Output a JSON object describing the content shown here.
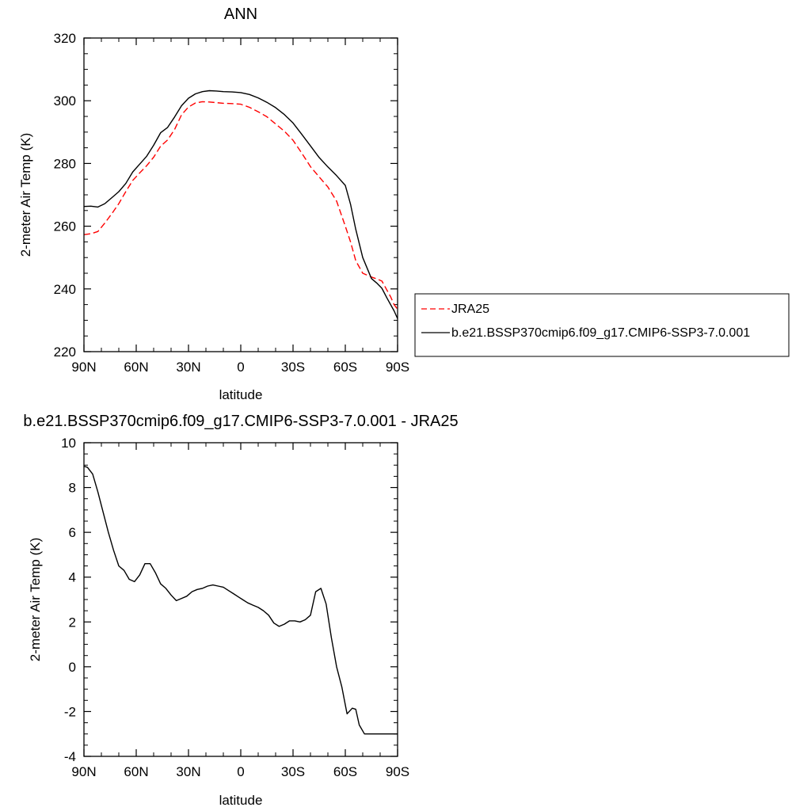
{
  "chart_data": [
    {
      "type": "line",
      "title": "ANN",
      "xlabel": "latitude",
      "ylabel": "2-meter Air Temp (K)",
      "xlim": [
        90,
        -90
      ],
      "ylim": [
        220,
        320
      ],
      "x_ticks": [
        90,
        60,
        30,
        0,
        -30,
        -60,
        -90
      ],
      "x_tick_labels": [
        "90N",
        "60N",
        "30N",
        "0",
        "30S",
        "60S",
        "90S"
      ],
      "y_ticks": [
        220,
        240,
        260,
        280,
        300,
        320
      ],
      "y_tick_labels": [
        "220",
        "240",
        "260",
        "280",
        "300",
        "320"
      ],
      "legend_position": "right",
      "series": [
        {
          "name": "JRA25",
          "color": "#ff0000",
          "style": "dashed",
          "x": [
            90,
            86,
            82,
            78,
            74,
            70,
            66,
            62,
            58,
            54,
            50,
            46,
            42,
            38,
            34,
            30,
            26,
            22,
            18,
            14,
            10,
            5,
            0,
            -5,
            -10,
            -15,
            -20,
            -25,
            -30,
            -35,
            -40,
            -45,
            -50,
            -55,
            -60,
            -63,
            -66,
            -70,
            -75,
            -78,
            -81,
            -84,
            -86,
            -88,
            -90
          ],
          "y": [
            257.3,
            257.6,
            258.3,
            261.0,
            264.0,
            267.2,
            271.0,
            274.6,
            277.0,
            279.3,
            282.0,
            285.5,
            287.5,
            290.8,
            295.5,
            298.0,
            299.3,
            299.7,
            299.6,
            299.4,
            299.2,
            299.1,
            298.9,
            297.9,
            296.5,
            294.9,
            292.6,
            290.3,
            287.4,
            283.3,
            279.0,
            275.7,
            272.5,
            268.0,
            260.0,
            255.0,
            249.0,
            245.0,
            243.8,
            243.2,
            242.5,
            239.5,
            237.5,
            235.0,
            233.5
          ]
        },
        {
          "name": "b.e21.BSSP370cmip6.f09_g17.CMIP6-SSP3-7.0.001",
          "color": "#000000",
          "style": "solid",
          "x": [
            90,
            86,
            82,
            78,
            74,
            70,
            66,
            62,
            58,
            54,
            50,
            46,
            42,
            38,
            34,
            30,
            26,
            22,
            18,
            14,
            10,
            5,
            0,
            -5,
            -10,
            -15,
            -20,
            -25,
            -30,
            -35,
            -40,
            -45,
            -50,
            -55,
            -60,
            -63,
            -66,
            -70,
            -75,
            -78,
            -81,
            -84,
            -86,
            -88,
            -90
          ],
          "y": [
            266.3,
            266.4,
            266.1,
            267.2,
            269.1,
            271.0,
            273.6,
            277.3,
            279.8,
            282.3,
            285.8,
            289.8,
            291.5,
            294.8,
            298.4,
            300.8,
            302.2,
            302.9,
            303.2,
            303.1,
            302.9,
            302.8,
            302.6,
            302.0,
            300.9,
            299.5,
            297.8,
            295.6,
            292.9,
            289.3,
            285.6,
            281.9,
            278.9,
            276.1,
            273.0,
            267.0,
            259.0,
            250.0,
            243.3,
            241.9,
            240.2,
            237.0,
            235.0,
            233.0,
            230.5
          ]
        }
      ]
    },
    {
      "type": "line",
      "title": "b.e21.BSSP370cmip6.f09_g17.CMIP6-SSP3-7.0.001 - JRA25",
      "xlabel": "latitude",
      "ylabel": "2-meter Air Temp (K)",
      "xlim": [
        90,
        -90
      ],
      "ylim": [
        -4,
        10
      ],
      "x_ticks": [
        90,
        60,
        30,
        0,
        -30,
        -60,
        -90
      ],
      "x_tick_labels": [
        "90N",
        "60N",
        "30N",
        "0",
        "30S",
        "60S",
        "90S"
      ],
      "y_ticks": [
        -4,
        -2,
        0,
        2,
        4,
        6,
        8,
        10
      ],
      "y_tick_labels": [
        "-4",
        "-2",
        "0",
        "2",
        "4",
        "6",
        "8",
        "10"
      ],
      "series": [
        {
          "color": "#000000",
          "style": "solid",
          "x": [
            90,
            88,
            85,
            82,
            79,
            76,
            73,
            70,
            67,
            64,
            61,
            58,
            55,
            52,
            49,
            46,
            43,
            40,
            37,
            34,
            31,
            28,
            25,
            22,
            19,
            16,
            13,
            10,
            7,
            4,
            1,
            -1,
            -4,
            -7,
            -10,
            -13,
            -16,
            -19,
            -22,
            -25,
            -28,
            -31,
            -34,
            -37,
            -40,
            -43,
            -46,
            -49,
            -52,
            -55,
            -58,
            -61,
            -64,
            -66,
            -68,
            -71,
            -74,
            -77,
            -80,
            -83,
            -85,
            -87,
            -90
          ],
          "y": [
            8.95,
            8.9,
            8.6,
            7.8,
            6.9,
            6.0,
            5.2,
            4.5,
            4.3,
            3.9,
            3.8,
            4.1,
            4.6,
            4.6,
            4.2,
            3.7,
            3.5,
            3.2,
            2.95,
            3.05,
            3.15,
            3.35,
            3.45,
            3.5,
            3.6,
            3.65,
            3.6,
            3.55,
            3.4,
            3.25,
            3.1,
            3.0,
            2.85,
            2.75,
            2.65,
            2.5,
            2.3,
            1.95,
            1.8,
            1.9,
            2.05,
            2.05,
            2.0,
            2.1,
            2.3,
            3.35,
            3.5,
            2.8,
            1.3,
            0.0,
            -0.9,
            -2.1,
            -1.85,
            -1.9,
            -2.6,
            -3.0,
            -3.0,
            -3.0,
            -3.0,
            -3.0,
            -3.0,
            -3.0,
            -3.0
          ]
        }
      ]
    }
  ]
}
